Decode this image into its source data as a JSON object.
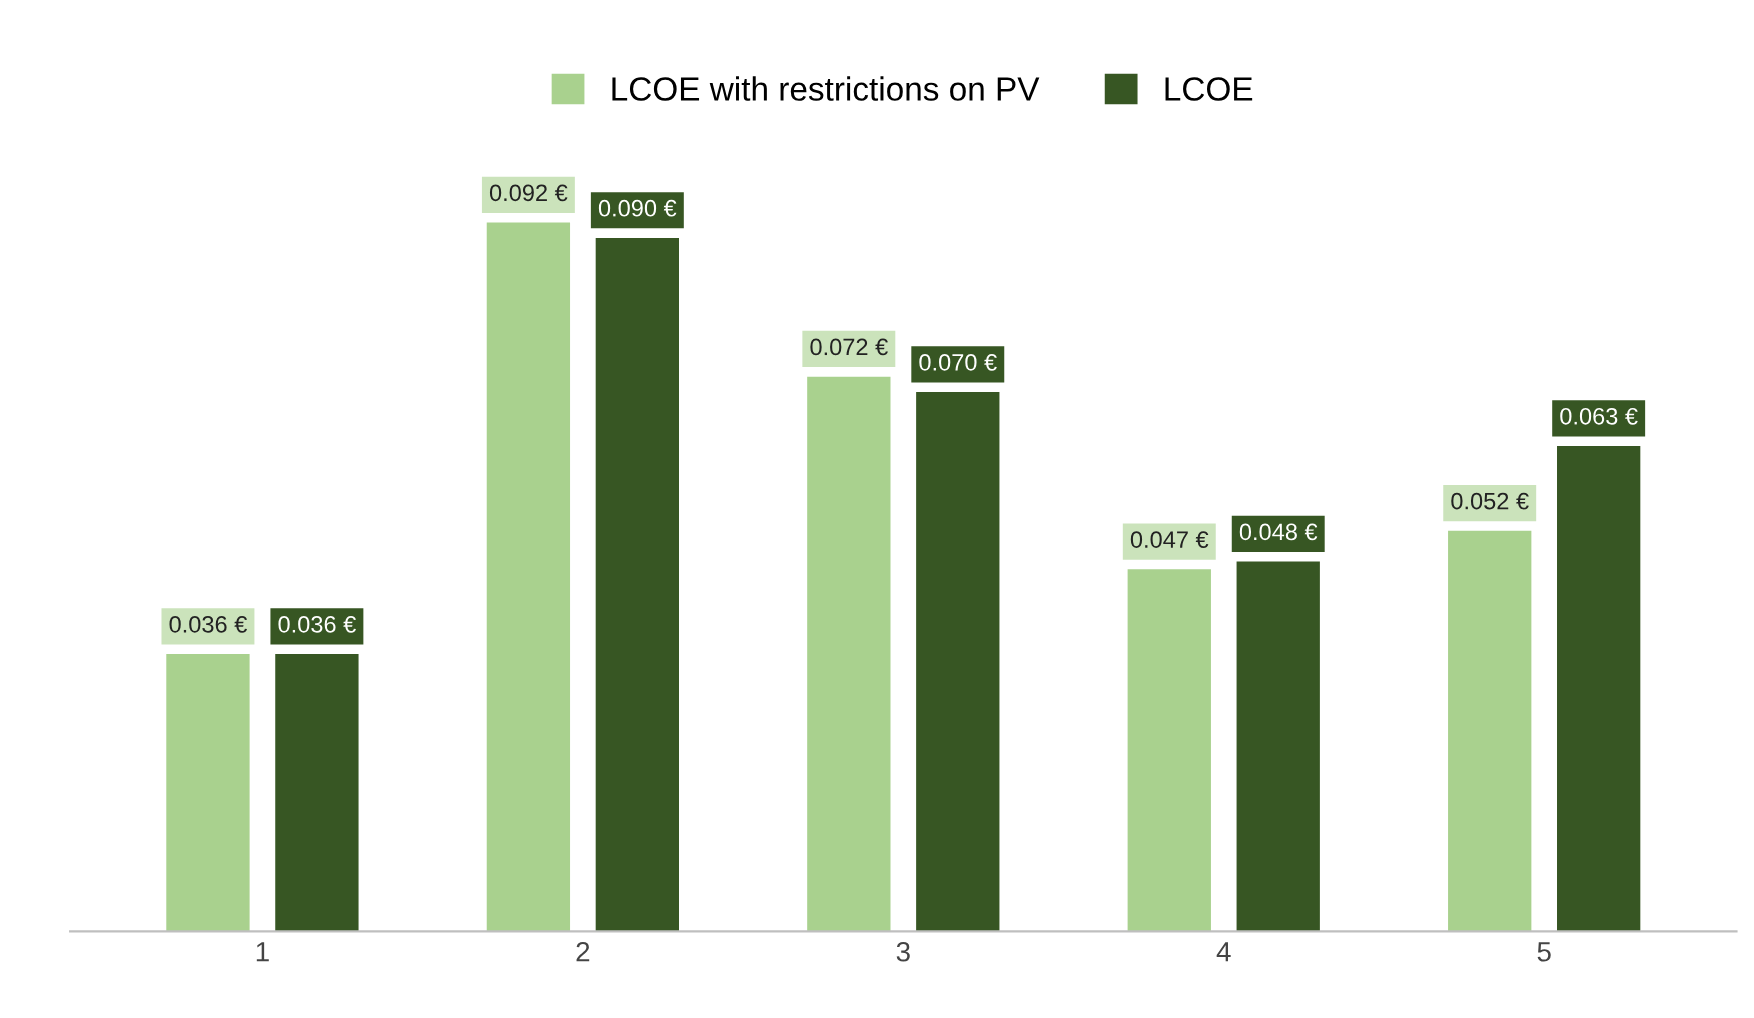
{
  "chart_data": {
    "type": "bar",
    "categories": [
      "1",
      "2",
      "3",
      "4",
      "5"
    ],
    "series": [
      {
        "name": "LCOE with restrictions on PV",
        "color": "#a9d18e",
        "values": [
          0.036,
          0.092,
          0.072,
          0.047,
          0.052
        ],
        "value_labels": [
          "0.036 €",
          "0.092 €",
          "0.072 €",
          "0.047 €",
          "0.052 €"
        ]
      },
      {
        "name": "LCOE",
        "color": "#375623",
        "values": [
          0.036,
          0.09,
          0.07,
          0.048,
          0.063
        ],
        "value_labels": [
          "0.036 €",
          "0.090 €",
          "0.070 €",
          "0.048 €",
          "0.063 €"
        ]
      }
    ],
    "legend": "top",
    "grid": false,
    "tick_labels": "x"
  }
}
